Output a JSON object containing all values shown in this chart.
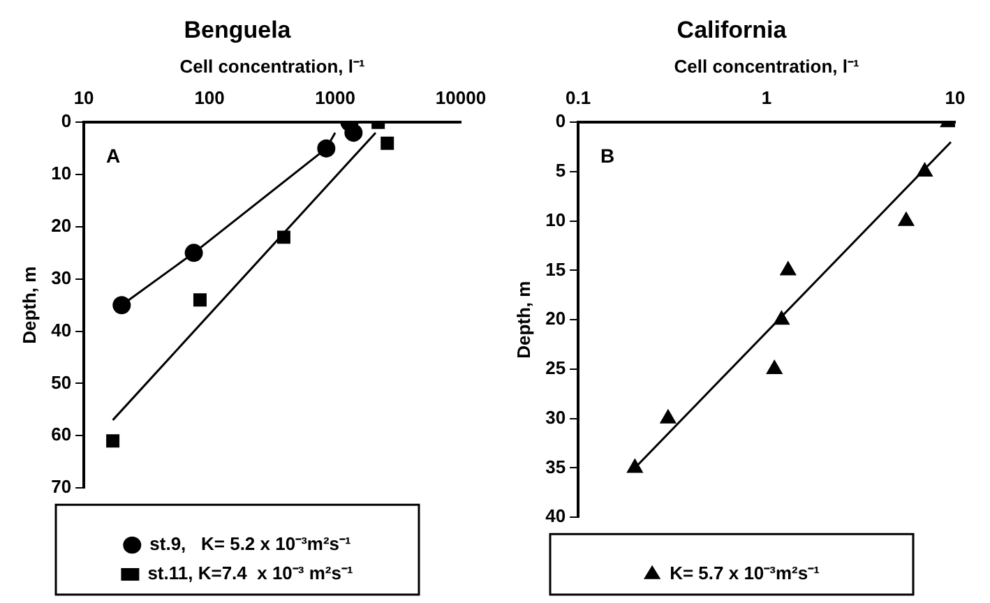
{
  "chart_data": [
    {
      "type": "scatter",
      "title": "Benguela",
      "xlabel": "Cell concentration, l⁻¹",
      "ylabel": "Depth, m",
      "log": "x",
      "xlim": [
        10,
        10000
      ],
      "xticks": [
        10,
        100,
        1000,
        10000
      ],
      "ylim": [
        70,
        0
      ],
      "yticks": [
        0,
        10,
        20,
        30,
        40,
        50,
        60,
        70
      ],
      "grid": false,
      "legend": "bottom",
      "annotations": [
        "A"
      ],
      "series": [
        {
          "name": "st.9,   K= 5.2 x 10⁻³m²s⁻¹",
          "marker": "circle",
          "color": "#000000",
          "x": [
            1300,
            1400,
            850,
            75,
            20
          ],
          "values": [
            0,
            2,
            5,
            25,
            35
          ]
        },
        {
          "name": "st.11, K=7.4  x 10⁻³ m²s⁻¹",
          "marker": "square",
          "color": "#000000",
          "x": [
            2200,
            2600,
            390,
            84,
            17
          ],
          "values": [
            0,
            4,
            22,
            34,
            61
          ]
        },
        {
          "type": "line",
          "marker": "none",
          "color": "#000000",
          "x": [
            20,
            75,
            850,
            1000
          ],
          "values": [
            35,
            25,
            5,
            2
          ]
        },
        {
          "type": "line",
          "marker": "none",
          "color": "#000000",
          "x": [
            17,
            2100
          ],
          "values": [
            57,
            2
          ]
        }
      ]
    },
    {
      "type": "scatter",
      "title": "California",
      "xlabel": "Cell concentration, l⁻¹",
      "ylabel": "Depth, m",
      "log": "x",
      "xlim": [
        0.1,
        10
      ],
      "xticks": [
        0.1,
        1,
        10
      ],
      "ylim": [
        40,
        0
      ],
      "yticks": [
        0,
        5,
        10,
        15,
        20,
        25,
        30,
        35,
        40
      ],
      "grid": false,
      "legend": "bottom",
      "annotations": [
        "B"
      ],
      "series": [
        {
          "name": "K= 5.7 x 10⁻³m²s⁻¹",
          "marker": "triangle",
          "color": "#000000",
          "x": [
            9.2,
            6.9,
            5.5,
            1.3,
            1.2,
            1.1,
            0.3,
            0.2
          ],
          "values": [
            0,
            5,
            10,
            15,
            20,
            25,
            30,
            35
          ]
        },
        {
          "type": "line",
          "marker": "none",
          "color": "#000000",
          "x": [
            0.2,
            9.5
          ],
          "values": [
            35,
            2
          ]
        }
      ]
    }
  ]
}
